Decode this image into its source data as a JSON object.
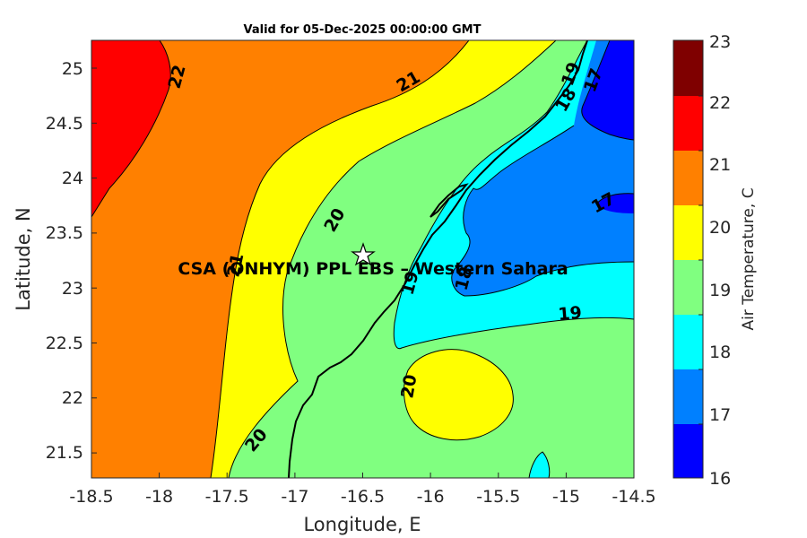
{
  "map": {
    "title": "Valid for 05-Dec-2025 00:00:00 GMT",
    "xlabel": "Longitude, E",
    "ylabel": "Latitude, N",
    "x_ticks": [
      "-18.5",
      "-18",
      "-17.5",
      "-17",
      "-16.5",
      "-16",
      "-15.5",
      "-15",
      "-14.5"
    ],
    "y_ticks": [
      "25",
      "24.5",
      "24",
      "23.5",
      "23",
      "22.5",
      "22",
      "21.5"
    ],
    "site_label": "CSA (ONHYM) PPL EBS – Western Sahara",
    "site_marker": "star-icon",
    "site_lon": -16.5,
    "site_lat": 23.3
  },
  "contours": {
    "labels": [
      "22",
      "21",
      "21",
      "20",
      "20",
      "20",
      "19",
      "19",
      "19",
      "18",
      "18",
      "17",
      "17"
    ]
  },
  "colorbar": {
    "label": "Air Temperature, C",
    "ticks": [
      "23",
      "22",
      "21",
      "20",
      "19",
      "18",
      "17",
      "16"
    ],
    "colors": [
      "#7f0000",
      "#ff0000",
      "#ff8000",
      "#ffff00",
      "#80ff80",
      "#00ffff",
      "#0080ff",
      "#0000ff"
    ]
  },
  "colors": {
    "band_22": "#ff0000",
    "band_21": "#ff8000",
    "band_20": "#ffff00",
    "band_19": "#80ff80",
    "band_18": "#00ffff",
    "band_17": "#0080ff",
    "band_16": "#0000ff",
    "coastline": "#000000"
  }
}
